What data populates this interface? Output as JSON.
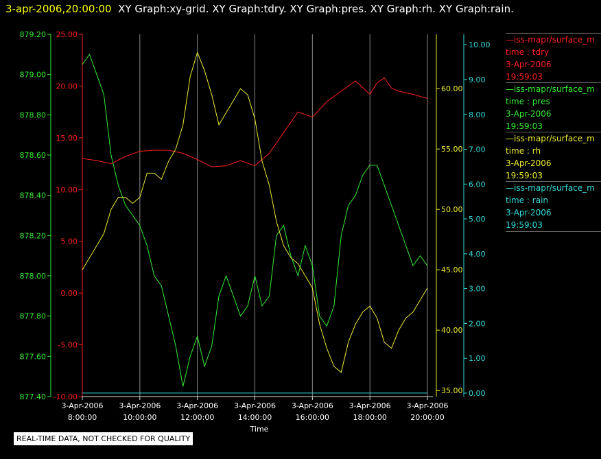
{
  "title_bar": {
    "timestamp": "3-apr-2006,20:00:00",
    "graphs": "XY Graph:xy-grid.  XY Graph:tdry.  XY Graph:pres.  XY Graph:rh.  XY Graph:rain."
  },
  "legend": [
    {
      "source": "iss-mapr/surface_m",
      "field": "time : tdry",
      "date": "3-Apr-2006",
      "time": "19:59:03",
      "color": "#ff2020"
    },
    {
      "source": "iss-mapr/surface_m",
      "field": "time : pres",
      "date": "3-Apr-2006",
      "time": "19:59:03",
      "color": "#33ee33"
    },
    {
      "source": "iss-mapr/surface_m",
      "field": "time : rh",
      "date": "3-Apr-2006",
      "time": "19:59:03",
      "color": "#eeee33"
    },
    {
      "source": "iss-mapr/surface_m",
      "field": "time : rain",
      "date": "3-Apr-2006",
      "time": "19:59:03",
      "color": "#33dddd"
    }
  ],
  "quality_note": "REAL-TIME DATA, NOT CHECKED FOR QUALITY",
  "chart_data": {
    "type": "line",
    "xlabel": "Time",
    "xlim": [
      8,
      20
    ],
    "x_ticks": [
      {
        "value": 8,
        "date": "3-Apr-2006",
        "time": "8:00:00"
      },
      {
        "value": 10,
        "date": "3-Apr-2006",
        "time": "10:00:00"
      },
      {
        "value": 12,
        "date": "3-Apr-2006",
        "time": "12:00:00"
      },
      {
        "value": 14,
        "date": "3-Apr-2006",
        "time": "14:00:00"
      },
      {
        "value": 16,
        "date": "3-Apr-2006",
        "time": "16:00:00"
      },
      {
        "value": 18,
        "date": "3-Apr-2006",
        "time": "18:00:00"
      },
      {
        "value": 20,
        "date": "3-Apr-2006",
        "time": "20:00:00"
      }
    ],
    "grid": "vertical",
    "legend_position": "right",
    "axes": [
      {
        "id": "pres",
        "side": "left-outer",
        "color": "#33ee33",
        "range": [
          877.4,
          879.2
        ],
        "ticks": [
          "877.40",
          "877.60",
          "877.80",
          "878.00",
          "878.20",
          "878.40",
          "878.60",
          "878.80",
          "879.00",
          "879.20"
        ]
      },
      {
        "id": "tdry",
        "side": "left-inner",
        "color": "#ff2020",
        "range": [
          -10,
          25
        ],
        "ticks": [
          "-10.00",
          "-5.00",
          "0.00",
          "5.00",
          "10.00",
          "15.00",
          "20.00",
          "25.00"
        ]
      },
      {
        "id": "rh",
        "side": "right-inner",
        "color": "#eeee33",
        "range": [
          34.5,
          64.5
        ],
        "ticks": [
          "35.00",
          "40.00",
          "45.00",
          "50.00",
          "55.00",
          "60.00"
        ]
      },
      {
        "id": "rain",
        "side": "right-outer",
        "color": "#33dddd",
        "range": [
          -0.1,
          10.3
        ],
        "ticks": [
          "0.00",
          "1.00",
          "2.00",
          "3.00",
          "4.00",
          "5.00",
          "6.00",
          "7.00",
          "8.00",
          "9.00",
          "10.00"
        ]
      }
    ],
    "series": [
      {
        "name": "tdry",
        "axis": "tdry",
        "color": "#ff2020",
        "x": [
          8.0,
          8.5,
          9.0,
          9.5,
          10.0,
          10.5,
          11.0,
          11.5,
          12.0,
          12.5,
          13.0,
          13.5,
          14.0,
          14.5,
          15.0,
          15.5,
          16.0,
          16.5,
          17.0,
          17.5,
          18.0,
          18.25,
          18.5,
          18.75,
          19.0,
          19.5,
          20.0
        ],
        "y": [
          13.0,
          12.8,
          12.5,
          13.2,
          13.7,
          13.8,
          13.8,
          13.5,
          12.9,
          12.2,
          12.3,
          12.8,
          12.3,
          13.5,
          15.5,
          17.5,
          17.0,
          18.5,
          19.5,
          20.5,
          19.2,
          20.3,
          20.8,
          19.8,
          19.5,
          19.2,
          18.8
        ]
      },
      {
        "name": "pres",
        "axis": "pres",
        "color": "#33ee33",
        "x": [
          8.0,
          8.25,
          8.5,
          8.75,
          9.0,
          9.25,
          9.5,
          9.75,
          10.0,
          10.25,
          10.5,
          10.75,
          11.0,
          11.25,
          11.5,
          11.75,
          12.0,
          12.25,
          12.5,
          12.75,
          13.0,
          13.25,
          13.5,
          13.75,
          14.0,
          14.25,
          14.5,
          14.75,
          15.0,
          15.25,
          15.5,
          15.75,
          16.0,
          16.25,
          16.5,
          16.75,
          17.0,
          17.25,
          17.5,
          17.75,
          18.0,
          18.25,
          18.5,
          18.75,
          19.0,
          19.25,
          19.5,
          19.75,
          20.0
        ],
        "y": [
          879.05,
          879.1,
          879.0,
          878.9,
          878.6,
          878.45,
          878.35,
          878.3,
          878.25,
          878.15,
          878.0,
          877.95,
          877.8,
          877.65,
          877.45,
          877.6,
          877.7,
          877.55,
          877.65,
          877.9,
          878.0,
          877.9,
          877.8,
          877.85,
          878.0,
          877.85,
          877.9,
          878.2,
          878.25,
          878.1,
          878.0,
          878.15,
          878.05,
          877.8,
          877.75,
          877.85,
          878.2,
          878.35,
          878.4,
          878.5,
          878.55,
          878.55,
          878.45,
          878.35,
          878.25,
          878.15,
          878.05,
          878.1,
          878.05
        ]
      },
      {
        "name": "rh",
        "axis": "rh",
        "color": "#eeee33",
        "x": [
          8.0,
          8.25,
          8.5,
          8.75,
          9.0,
          9.25,
          9.5,
          9.75,
          10.0,
          10.25,
          10.5,
          10.75,
          11.0,
          11.25,
          11.5,
          11.75,
          12.0,
          12.25,
          12.5,
          12.75,
          13.0,
          13.25,
          13.5,
          13.75,
          14.0,
          14.25,
          14.5,
          14.75,
          15.0,
          15.25,
          15.5,
          15.75,
          16.0,
          16.25,
          16.5,
          16.75,
          17.0,
          17.25,
          17.5,
          17.75,
          18.0,
          18.25,
          18.5,
          18.75,
          19.0,
          19.25,
          19.5,
          19.75,
          20.0
        ],
        "y": [
          45.0,
          46.0,
          47.0,
          48.0,
          50.0,
          51.0,
          51.0,
          50.5,
          51.0,
          53.0,
          53.0,
          52.5,
          54.0,
          55.0,
          57.0,
          61.0,
          63.0,
          61.5,
          59.5,
          57.0,
          58.0,
          59.0,
          60.0,
          59.5,
          57.5,
          54.0,
          52.0,
          49.0,
          47.0,
          46.0,
          45.5,
          44.5,
          43.5,
          40.5,
          38.5,
          37.0,
          36.5,
          39.0,
          40.5,
          41.5,
          42.0,
          41.0,
          39.0,
          38.5,
          40.0,
          41.0,
          41.5,
          42.5,
          43.5
        ]
      },
      {
        "name": "rain",
        "axis": "rain",
        "color": "#33dddd",
        "x": [
          8,
          20
        ],
        "y": [
          0,
          0
        ]
      }
    ]
  }
}
